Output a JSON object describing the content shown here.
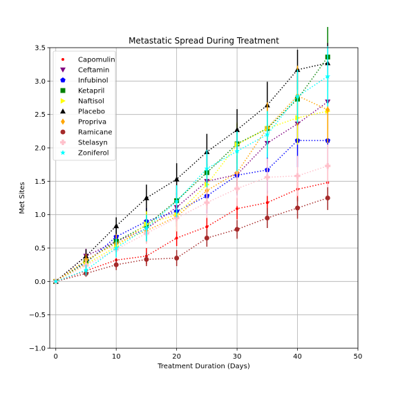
{
  "chart_data": {
    "type": "line",
    "title": "Metastatic Spread During Treatment",
    "xlabel": "Treatment Duration (Days)",
    "ylabel": "Met Sites",
    "xlim": [
      -1,
      50
    ],
    "ylim": [
      -1.0,
      3.5
    ],
    "xticks": [
      0,
      10,
      20,
      30,
      40,
      50
    ],
    "yticks": [
      -1.0,
      -0.5,
      0.0,
      0.5,
      1.0,
      1.5,
      2.0,
      2.5,
      3.0,
      3.5
    ],
    "grid": true,
    "legend_position": "top-left",
    "x": [
      0,
      5,
      10,
      15,
      20,
      25,
      30,
      35,
      40,
      45
    ],
    "series": [
      {
        "name": "Capomulin",
        "color": "#ff0000",
        "marker": "point",
        "values": [
          0.0,
          0.16,
          0.32,
          0.38,
          0.65,
          0.82,
          1.09,
          1.18,
          1.38,
          1.48
        ],
        "errors": [
          0.0,
          0.07,
          0.12,
          0.12,
          0.12,
          0.14,
          0.16,
          0.18,
          0.18,
          0.2
        ]
      },
      {
        "name": "Ceftamin",
        "color": "#800080",
        "marker": "triangle-down",
        "values": [
          0.0,
          0.38,
          0.6,
          0.79,
          1.11,
          1.5,
          1.6,
          2.07,
          2.36,
          2.69
        ],
        "errors": [
          0.0,
          0.11,
          0.17,
          0.2,
          0.22,
          0.26,
          0.28,
          0.29,
          0.3,
          0.4
        ]
      },
      {
        "name": "Infubinol",
        "color": "#0000ff",
        "marker": "pentagon",
        "values": [
          0.0,
          0.28,
          0.67,
          0.9,
          1.05,
          1.28,
          1.59,
          1.67,
          2.11,
          2.11
        ],
        "errors": [
          0.0,
          0.09,
          0.15,
          0.2,
          0.23,
          0.26,
          0.3,
          0.35,
          0.4,
          0.45
        ]
      },
      {
        "name": "Ketapril",
        "color": "#008000",
        "marker": "square",
        "values": [
          0.0,
          0.3,
          0.6,
          0.84,
          1.21,
          1.63,
          2.06,
          2.29,
          2.73,
          3.36
        ],
        "errors": [
          0.0,
          0.1,
          0.15,
          0.2,
          0.23,
          0.27,
          0.3,
          0.33,
          0.35,
          0.45
        ]
      },
      {
        "name": "Naftisol",
        "color": "#ffff00",
        "marker": "triangle-right",
        "values": [
          0.0,
          0.26,
          0.52,
          0.86,
          1.0,
          1.45,
          2.05,
          2.29,
          2.45,
          2.55
        ],
        "errors": [
          0.0,
          0.09,
          0.15,
          0.2,
          0.25,
          0.3,
          0.33,
          0.36,
          0.4,
          0.42
        ]
      },
      {
        "name": "Placebo",
        "color": "#000000",
        "marker": "triangle-up",
        "values": [
          0.0,
          0.38,
          0.83,
          1.25,
          1.53,
          1.94,
          2.27,
          2.64,
          3.17,
          3.27
        ],
        "errors": [
          0.0,
          0.1,
          0.13,
          0.2,
          0.24,
          0.27,
          0.31,
          0.35,
          0.3,
          0.3
        ]
      },
      {
        "name": "Propriva",
        "color": "#ffa500",
        "marker": "diamond",
        "values": [
          0.0,
          0.32,
          0.57,
          0.76,
          0.97,
          1.36,
          1.63,
          2.3,
          2.78,
          2.57
        ],
        "errors": [
          0.0,
          0.09,
          0.14,
          0.18,
          0.22,
          0.28,
          0.32,
          0.38,
          0.45,
          0.5
        ]
      },
      {
        "name": "Ramicane",
        "color": "#a52a2a",
        "marker": "circle",
        "values": [
          0.0,
          0.12,
          0.25,
          0.33,
          0.35,
          0.65,
          0.78,
          0.95,
          1.1,
          1.25
        ],
        "errors": [
          0.0,
          0.05,
          0.08,
          0.1,
          0.12,
          0.13,
          0.14,
          0.15,
          0.16,
          0.18
        ]
      },
      {
        "name": "Stelasyn",
        "color": "#ffc0cb",
        "marker": "plus",
        "values": [
          0.0,
          0.24,
          0.48,
          0.72,
          0.95,
          1.18,
          1.39,
          1.56,
          1.58,
          1.73
        ],
        "errors": [
          0.0,
          0.09,
          0.13,
          0.16,
          0.2,
          0.23,
          0.26,
          0.28,
          0.3,
          0.32
        ]
      },
      {
        "name": "Zoniferol",
        "color": "#00ffff",
        "marker": "star",
        "values": [
          0.0,
          0.17,
          0.5,
          0.8,
          1.2,
          1.69,
          1.95,
          2.2,
          2.77,
          3.07
        ],
        "errors": [
          0.0,
          0.08,
          0.14,
          0.2,
          0.24,
          0.28,
          0.3,
          0.35,
          0.4,
          0.45
        ]
      }
    ]
  }
}
